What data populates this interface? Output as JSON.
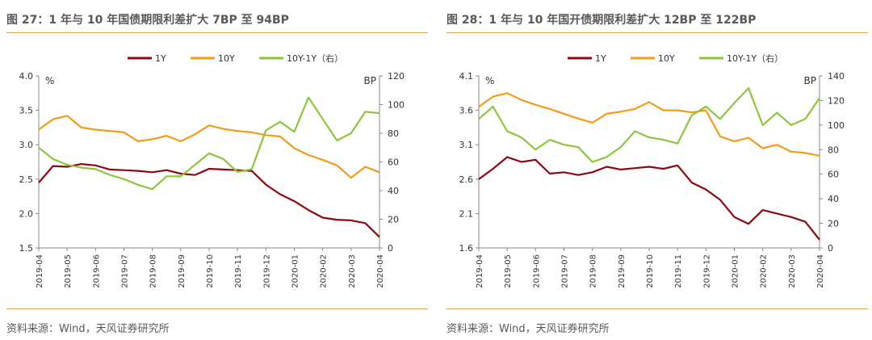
{
  "chart_data": [
    {
      "type": "line",
      "title": "图 27：1 年与 10 年国债期限利差扩大 7BP 至 94BP",
      "source": "资料来源：Wind，天风证券研究所",
      "left_unit": "%",
      "right_unit": "BP",
      "ylim_left": [
        1.5,
        4.0
      ],
      "yticks_left": [
        "1.5",
        "2.0",
        "2.5",
        "3.0",
        "3.5",
        "4.0"
      ],
      "ylim_right": [
        0,
        120
      ],
      "yticks_right": [
        "0",
        "20",
        "40",
        "60",
        "80",
        "100",
        "120"
      ],
      "x_labels": [
        "2019-04",
        "2019-05",
        "2019-06",
        "2019-07",
        "2019-08",
        "2019-09",
        "2019-10",
        "2019-11",
        "2019-12",
        "2020-01",
        "2020-02",
        "2020-03",
        "2020-04"
      ],
      "x": [
        0,
        0.5,
        1,
        1.5,
        2,
        2.5,
        3,
        3.5,
        4,
        4.5,
        5,
        5.5,
        6,
        6.5,
        7,
        7.5,
        8,
        8.5,
        9,
        9.5,
        10,
        10.5,
        11,
        11.5,
        12
      ],
      "series": [
        {
          "name": "1Y",
          "axis": "left",
          "color": "#8b0a12",
          "values": [
            2.45,
            2.69,
            2.68,
            2.72,
            2.7,
            2.64,
            2.63,
            2.62,
            2.6,
            2.63,
            2.58,
            2.56,
            2.65,
            2.64,
            2.63,
            2.62,
            2.42,
            2.28,
            2.18,
            2.05,
            1.94,
            1.91,
            1.9,
            1.86,
            1.66
          ]
        },
        {
          "name": "10Y",
          "axis": "left",
          "color": "#f29b1d",
          "values": [
            3.22,
            3.37,
            3.42,
            3.25,
            3.22,
            3.2,
            3.18,
            3.05,
            3.08,
            3.13,
            3.05,
            3.15,
            3.28,
            3.23,
            3.2,
            3.18,
            3.14,
            3.12,
            2.95,
            2.85,
            2.78,
            2.7,
            2.52,
            2.68,
            2.6
          ]
        },
        {
          "name": "10Y-1Y（右）",
          "axis": "right",
          "color": "#8cc63f",
          "values": [
            70,
            62,
            58,
            56,
            55,
            51,
            48,
            44,
            41,
            50,
            50,
            58,
            66,
            62,
            53,
            55,
            82,
            88,
            81,
            105,
            90,
            75,
            80,
            95,
            94
          ]
        }
      ]
    },
    {
      "type": "line",
      "title": "图 28：1 年与 10 年国开债期限利差扩大 12BP 至 122BP",
      "source": "资料来源：Wind，天风证券研究所",
      "left_unit": "%",
      "right_unit": "BP",
      "ylim_left": [
        1.6,
        4.1
      ],
      "yticks_left": [
        "1.6",
        "2.1",
        "2.6",
        "3.1",
        "3.6",
        "4.1"
      ],
      "ylim_right": [
        0,
        140
      ],
      "yticks_right": [
        "0",
        "20",
        "40",
        "60",
        "80",
        "100",
        "120",
        "140"
      ],
      "x_labels": [
        "2019-04",
        "2019-05",
        "2019-06",
        "2019-07",
        "2019-08",
        "2019-09",
        "2019-10",
        "2019-11",
        "2019-12",
        "2020-01",
        "2020-02",
        "2020-03",
        "2020-04"
      ],
      "x": [
        0,
        0.5,
        1,
        1.5,
        2,
        2.5,
        3,
        3.5,
        4,
        4.5,
        5,
        5.5,
        6,
        6.5,
        7,
        7.5,
        8,
        8.5,
        9,
        9.5,
        10,
        10.5,
        11,
        11.5,
        12
      ],
      "series": [
        {
          "name": "1Y",
          "axis": "left",
          "color": "#8b0a12",
          "values": [
            2.6,
            2.75,
            2.92,
            2.85,
            2.88,
            2.68,
            2.7,
            2.66,
            2.7,
            2.78,
            2.74,
            2.76,
            2.78,
            2.75,
            2.8,
            2.55,
            2.45,
            2.3,
            2.05,
            1.95,
            2.15,
            2.1,
            2.05,
            1.98,
            1.72
          ]
        },
        {
          "name": "10Y",
          "axis": "left",
          "color": "#f29b1d",
          "values": [
            3.65,
            3.8,
            3.85,
            3.75,
            3.68,
            3.62,
            3.55,
            3.48,
            3.42,
            3.55,
            3.58,
            3.62,
            3.72,
            3.6,
            3.6,
            3.57,
            3.6,
            3.22,
            3.15,
            3.2,
            3.05,
            3.1,
            3.0,
            2.98,
            2.94
          ]
        },
        {
          "name": "10Y-1Y（右）",
          "axis": "right",
          "color": "#8cc63f",
          "values": [
            105,
            115,
            95,
            90,
            80,
            88,
            84,
            82,
            70,
            74,
            82,
            95,
            90,
            88,
            85,
            108,
            115,
            105,
            118,
            130,
            100,
            110,
            100,
            105,
            122
          ]
        }
      ]
    }
  ]
}
